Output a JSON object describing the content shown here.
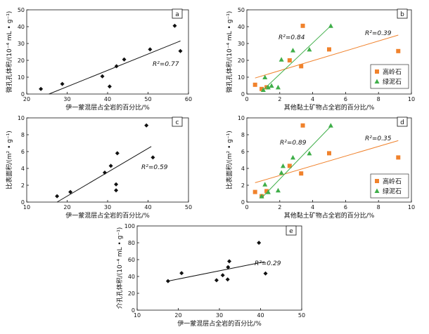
{
  "colors": {
    "black": "#111111",
    "kaolinite": "#f0822c",
    "chlorite": "#3fae49"
  },
  "chart_data": [
    {
      "type": "scatter",
      "panel_label": "a",
      "xlabel": "伊一蒙混层占全岩的百分比/%",
      "ylabel": "微孔孔体积/(10⁻⁴ mL • g⁻¹)",
      "xlim": [
        20,
        60
      ],
      "ylim": [
        0,
        50
      ],
      "xticks": [
        "20",
        "30",
        "40",
        "50",
        "60"
      ],
      "yticks": [
        "0",
        "10",
        "20",
        "30",
        "40",
        "50"
      ],
      "series": [
        {
          "marker": "diamond",
          "color": "#111111",
          "x": [
            23.5,
            28.8,
            38.7,
            40.5,
            42.2,
            44.1,
            50.5,
            56.6,
            58.0
          ],
          "y": [
            3.0,
            6.0,
            10.5,
            4.5,
            16.5,
            20.5,
            26.5,
            40.5,
            25.5
          ],
          "fit": {
            "x": [
              25.5,
              58.0
            ],
            "y": [
              0,
              31.5
            ]
          },
          "r2_text": "R²=0.77"
        }
      ]
    },
    {
      "type": "scatter",
      "panel_label": "b",
      "xlabel": "其他黏土矿物占全岩的百分比/%",
      "ylabel": "微孔孔体积/(10⁻⁴ mL • g⁻¹)",
      "xlim": [
        0,
        10
      ],
      "ylim": [
        0,
        50
      ],
      "xticks": [
        "0",
        "2",
        "4",
        "6",
        "8",
        "10"
      ],
      "yticks": [
        "0",
        "10",
        "20",
        "30",
        "40",
        "50"
      ],
      "legend": {
        "position": "bottom-right"
      },
      "series": [
        {
          "name": "高岭石",
          "marker": "square",
          "color": "#f0822c",
          "x": [
            0.5,
            0.9,
            1.2,
            2.6,
            3.3,
            3.4,
            5.0,
            9.2
          ],
          "y": [
            5.5,
            3.0,
            4.0,
            20.0,
            16.5,
            40.5,
            26.5,
            25.5
          ],
          "fit": {
            "x": [
              0.5,
              9.2
            ],
            "y": [
              9.5,
              35.0
            ]
          },
          "r2_text": "R²=0.39"
        },
        {
          "name": "绿泥石",
          "marker": "triangle",
          "color": "#3fae49",
          "x": [
            1.0,
            1.1,
            1.3,
            1.5,
            1.9,
            2.1,
            2.8,
            3.8,
            5.1
          ],
          "y": [
            2.5,
            10.0,
            4.0,
            5.0,
            4.0,
            20.5,
            26.0,
            26.5,
            40.5
          ],
          "fit": {
            "x": [
              1.0,
              5.1
            ],
            "y": [
              2.5,
              40.5
            ]
          },
          "r2_text": "R²=0.84"
        }
      ]
    },
    {
      "type": "scatter",
      "panel_label": "c",
      "xlabel": "伊一蒙混层占全岩的百分比/%",
      "ylabel": "比表面积/(m² • g⁻¹)",
      "xlim": [
        10,
        50
      ],
      "ylim": [
        0,
        10
      ],
      "xticks": [
        "10",
        "20",
        "30",
        "40",
        "50"
      ],
      "yticks": [
        "0",
        "2",
        "4",
        "6",
        "8",
        "10"
      ],
      "series": [
        {
          "marker": "diamond",
          "color": "#111111",
          "x": [
            17.5,
            20.8,
            29.3,
            30.8,
            32.1,
            32.1,
            32.4,
            39.6,
            41.2
          ],
          "y": [
            0.7,
            1.2,
            3.5,
            4.3,
            1.4,
            2.1,
            5.8,
            9.1,
            5.3
          ],
          "fit": {
            "x": [
              17.5,
              40.8
            ],
            "y": [
              0.0,
              6.6
            ]
          },
          "r2_text": "R²=0.59"
        }
      ]
    },
    {
      "type": "scatter",
      "panel_label": "d",
      "xlabel": "其他黏土矿物占全岩的百分比/%",
      "ylabel": "比表面积/(m² • g⁻¹)",
      "xlim": [
        0,
        10
      ],
      "ylim": [
        0,
        10
      ],
      "xticks": [
        "0",
        "2",
        "4",
        "6",
        "8",
        "10"
      ],
      "yticks": [
        "0",
        "2",
        "4",
        "6",
        "8",
        "10"
      ],
      "legend": {
        "position": "bottom-right"
      },
      "series": [
        {
          "name": "高岭石",
          "marker": "square",
          "color": "#f0822c",
          "x": [
            0.5,
            0.9,
            1.2,
            2.6,
            3.3,
            3.4,
            5.0,
            9.2
          ],
          "y": [
            1.2,
            0.7,
            1.3,
            4.3,
            3.4,
            9.1,
            5.8,
            5.3
          ],
          "fit": {
            "x": [
              0.5,
              9.2
            ],
            "y": [
              2.3,
              7.3
            ]
          },
          "r2_text": "R²=0.35"
        },
        {
          "name": "绿泥石",
          "marker": "triangle",
          "color": "#3fae49",
          "x": [
            0.9,
            1.1,
            1.3,
            1.9,
            2.1,
            2.2,
            2.8,
            3.8,
            5.1
          ],
          "y": [
            0.7,
            2.1,
            1.2,
            1.4,
            3.5,
            4.3,
            5.3,
            5.8,
            9.1
          ],
          "fit": {
            "x": [
              0.9,
              5.1
            ],
            "y": [
              0.5,
              9.0
            ]
          },
          "r2_text": "R²=0.89"
        }
      ]
    },
    {
      "type": "scatter",
      "panel_label": "e",
      "xlabel": "伊一蒙混层占全岩的百分比/%",
      "ylabel": "介孔孔体积/(10⁻⁴ mL • g⁻¹)",
      "xlim": [
        10,
        50
      ],
      "ylim": [
        0,
        100
      ],
      "xticks": [
        "10",
        "20",
        "30",
        "40",
        "50"
      ],
      "yticks": [
        "0",
        "20",
        "40",
        "60",
        "80",
        "100"
      ],
      "series": [
        {
          "marker": "diamond",
          "color": "#111111",
          "x": [
            17.5,
            20.8,
            29.3,
            30.8,
            32.0,
            32.1,
            32.4,
            39.6,
            41.2
          ],
          "y": [
            34.5,
            44.0,
            35.5,
            41.5,
            36.5,
            51.0,
            58.0,
            80.0,
            43.5
          ],
          "fit": {
            "x": [
              17.5,
              41.0
            ],
            "y": [
              34.5,
              57.5
            ]
          },
          "r2_text": "R²=0.29"
        }
      ]
    }
  ]
}
